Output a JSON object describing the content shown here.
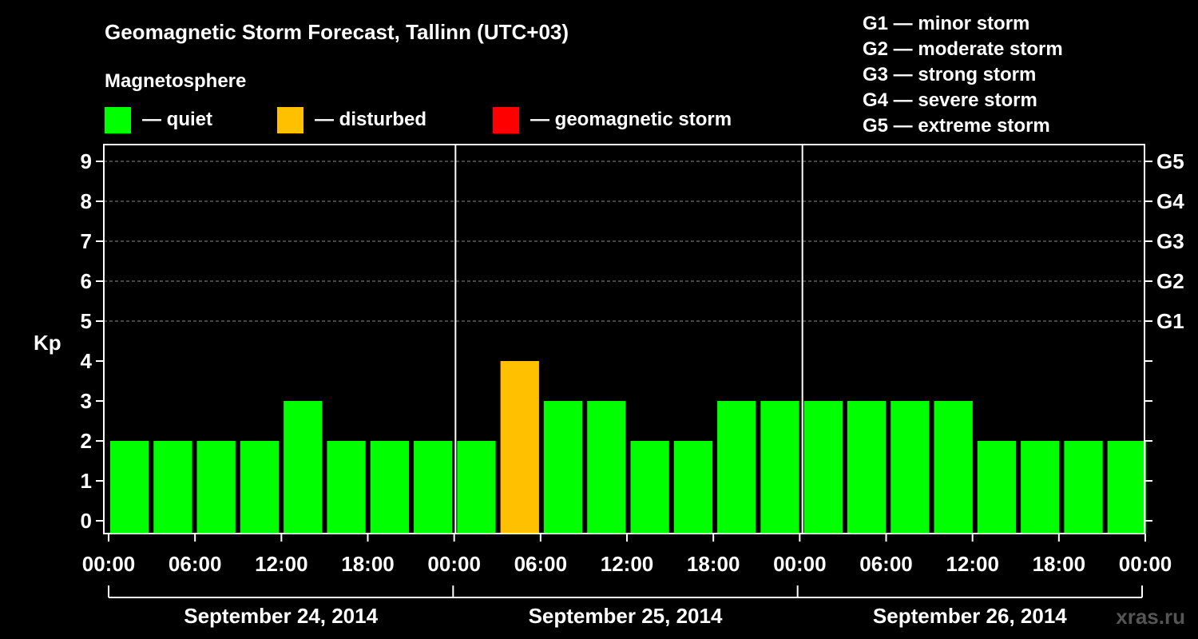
{
  "chart_data": {
    "type": "bar",
    "title": "Geomagnetic Storm Forecast, Tallinn (UTC+03)",
    "legend": {
      "heading": "Magnetosphere",
      "items": [
        {
          "label": "— quiet",
          "color": "#00ff00"
        },
        {
          "label": "— disturbed",
          "color": "#ffc000"
        },
        {
          "label": "— geomagnetic storm",
          "color": "#ff0000"
        }
      ]
    },
    "storm_scale": [
      {
        "level": "G1",
        "kp": 5,
        "text": "G1 — minor storm"
      },
      {
        "level": "G2",
        "kp": 6,
        "text": "G2 — moderate storm"
      },
      {
        "level": "G3",
        "kp": 7,
        "text": "G3 — strong storm"
      },
      {
        "level": "G4",
        "kp": 8,
        "text": "G4 — severe storm"
      },
      {
        "level": "G5",
        "kp": 9,
        "text": "G5 — extreme storm"
      }
    ],
    "ylabel": "Kp",
    "ylim": [
      0,
      9
    ],
    "yticks": [
      0,
      1,
      2,
      3,
      4,
      5,
      6,
      7,
      8,
      9
    ],
    "grid": true,
    "xtick_labels": [
      "00:00",
      "06:00",
      "12:00",
      "18:00",
      "00:00",
      "06:00",
      "12:00",
      "18:00",
      "00:00",
      "06:00",
      "12:00",
      "18:00",
      "00:00"
    ],
    "days": [
      "September 24, 2014",
      "September 25, 2014",
      "September 26, 2014"
    ],
    "categories": [
      "00:00",
      "03:00",
      "06:00",
      "09:00",
      "12:00",
      "15:00",
      "18:00",
      "21:00",
      "00:00",
      "03:00",
      "06:00",
      "09:00",
      "12:00",
      "15:00",
      "18:00",
      "21:00",
      "00:00",
      "03:00",
      "06:00",
      "09:00",
      "12:00",
      "15:00",
      "18:00",
      "21:00"
    ],
    "values": [
      2,
      2,
      2,
      2,
      3,
      2,
      2,
      2,
      2,
      4,
      3,
      3,
      2,
      2,
      3,
      3,
      3,
      3,
      3,
      3,
      2,
      2,
      2,
      2
    ],
    "colors": {
      "quiet": "#00ff00",
      "disturbed": "#ffc000",
      "storm": "#ff0000"
    }
  },
  "watermark": "xras.ru"
}
